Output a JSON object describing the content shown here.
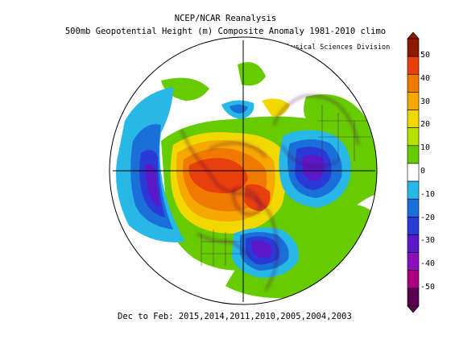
{
  "title": "NCEP/NCAR Reanalysis",
  "subtitle": "500mb Geopotential Height (m) Composite Anomaly 1981-2010 climo",
  "credit": "NOAA/ESRL Physical Sciences Division",
  "footer": "Dec to Feb: 2015,2014,2011,2010,2005,2004,2003",
  "colorbar": {
    "labels": [
      "50",
      "40",
      "30",
      "20",
      "10",
      "0",
      "-10",
      "-20",
      "-30",
      "-40",
      "-50"
    ],
    "colors": [
      "#8b1a00",
      "#e8400c",
      "#f07a00",
      "#f5a800",
      "#f0d800",
      "#b8e000",
      "#66cc00",
      "#ffffff",
      "#28b8e8",
      "#1a70d8",
      "#2a3ad8",
      "#5a18c8",
      "#8a10b8",
      "#a80080",
      "#5a0050"
    ]
  },
  "anomaly_centers": [
    {
      "name": "positive-anomaly-northwest-north-america",
      "value": 50
    },
    {
      "name": "negative-anomaly-scandinavia",
      "value": -40
    },
    {
      "name": "negative-anomaly-eastern-north-america",
      "value": -40
    },
    {
      "name": "negative-anomaly-north-pacific",
      "value": -30
    }
  ]
}
